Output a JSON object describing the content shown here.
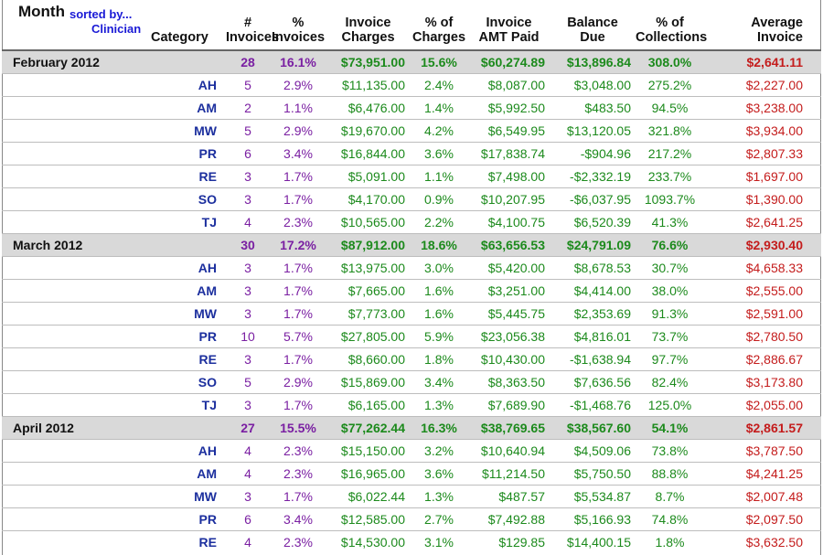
{
  "header": {
    "month": "Month",
    "sorted_by": "sorted by...",
    "clinician": "Clinician",
    "category": "Category",
    "invoices_count": [
      "#",
      "Invoices"
    ],
    "pct_invoices": [
      "%",
      "Invoices"
    ],
    "invoice_charges": [
      "Invoice",
      "Charges"
    ],
    "pct_charges": [
      "% of",
      "Charges"
    ],
    "invoice_amt_paid": [
      "Invoice",
      "AMT Paid"
    ],
    "balance_due": [
      "Balance",
      "Due"
    ],
    "pct_collections": [
      "% of",
      "Collections"
    ],
    "average_invoice": [
      "Average",
      "Invoice"
    ]
  },
  "months": [
    {
      "label": "February 2012",
      "summary": {
        "invoices": "28",
        "pct_invoices": "16.1%",
        "charges": "$73,951.00",
        "pct_charges": "15.6%",
        "paid": "$60,274.89",
        "balance": "$13,896.84",
        "collections": "308.0%",
        "average": "$2,641.11"
      },
      "rows": [
        {
          "code": "AH",
          "invoices": "5",
          "pct_invoices": "2.9%",
          "charges": "$11,135.00",
          "pct_charges": "2.4%",
          "paid": "$8,087.00",
          "balance": "$3,048.00",
          "collections": "275.2%",
          "average": "$2,227.00"
        },
        {
          "code": "AM",
          "invoices": "2",
          "pct_invoices": "1.1%",
          "charges": "$6,476.00",
          "pct_charges": "1.4%",
          "paid": "$5,992.50",
          "balance": "$483.50",
          "collections": "94.5%",
          "average": "$3,238.00"
        },
        {
          "code": "MW",
          "invoices": "5",
          "pct_invoices": "2.9%",
          "charges": "$19,670.00",
          "pct_charges": "4.2%",
          "paid": "$6,549.95",
          "balance": "$13,120.05",
          "collections": "321.8%",
          "average": "$3,934.00"
        },
        {
          "code": "PR",
          "invoices": "6",
          "pct_invoices": "3.4%",
          "charges": "$16,844.00",
          "pct_charges": "3.6%",
          "paid": "$17,838.74",
          "balance": "-$904.96",
          "collections": "217.2%",
          "average": "$2,807.33"
        },
        {
          "code": "RE",
          "invoices": "3",
          "pct_invoices": "1.7%",
          "charges": "$5,091.00",
          "pct_charges": "1.1%",
          "paid": "$7,498.00",
          "balance": "-$2,332.19",
          "collections": "233.7%",
          "average": "$1,697.00"
        },
        {
          "code": "SO",
          "invoices": "3",
          "pct_invoices": "1.7%",
          "charges": "$4,170.00",
          "pct_charges": "0.9%",
          "paid": "$10,207.95",
          "balance": "-$6,037.95",
          "collections": "1093.7%",
          "average": "$1,390.00"
        },
        {
          "code": "TJ",
          "invoices": "4",
          "pct_invoices": "2.3%",
          "charges": "$10,565.00",
          "pct_charges": "2.2%",
          "paid": "$4,100.75",
          "balance": "$6,520.39",
          "collections": "41.3%",
          "average": "$2,641.25"
        }
      ]
    },
    {
      "label": "March 2012",
      "summary": {
        "invoices": "30",
        "pct_invoices": "17.2%",
        "charges": "$87,912.00",
        "pct_charges": "18.6%",
        "paid": "$63,656.53",
        "balance": "$24,791.09",
        "collections": "76.6%",
        "average": "$2,930.40"
      },
      "rows": [
        {
          "code": "AH",
          "invoices": "3",
          "pct_invoices": "1.7%",
          "charges": "$13,975.00",
          "pct_charges": "3.0%",
          "paid": "$5,420.00",
          "balance": "$8,678.53",
          "collections": "30.7%",
          "average": "$4,658.33"
        },
        {
          "code": "AM",
          "invoices": "3",
          "pct_invoices": "1.7%",
          "charges": "$7,665.00",
          "pct_charges": "1.6%",
          "paid": "$3,251.00",
          "balance": "$4,414.00",
          "collections": "38.0%",
          "average": "$2,555.00"
        },
        {
          "code": "MW",
          "invoices": "3",
          "pct_invoices": "1.7%",
          "charges": "$7,773.00",
          "pct_charges": "1.6%",
          "paid": "$5,445.75",
          "balance": "$2,353.69",
          "collections": "91.3%",
          "average": "$2,591.00"
        },
        {
          "code": "PR",
          "invoices": "10",
          "pct_invoices": "5.7%",
          "charges": "$27,805.00",
          "pct_charges": "5.9%",
          "paid": "$23,056.38",
          "balance": "$4,816.01",
          "collections": "73.7%",
          "average": "$2,780.50"
        },
        {
          "code": "RE",
          "invoices": "3",
          "pct_invoices": "1.7%",
          "charges": "$8,660.00",
          "pct_charges": "1.8%",
          "paid": "$10,430.00",
          "balance": "-$1,638.94",
          "collections": "97.7%",
          "average": "$2,886.67"
        },
        {
          "code": "SO",
          "invoices": "5",
          "pct_invoices": "2.9%",
          "charges": "$15,869.00",
          "pct_charges": "3.4%",
          "paid": "$8,363.50",
          "balance": "$7,636.56",
          "collections": "82.4%",
          "average": "$3,173.80"
        },
        {
          "code": "TJ",
          "invoices": "3",
          "pct_invoices": "1.7%",
          "charges": "$6,165.00",
          "pct_charges": "1.3%",
          "paid": "$7,689.90",
          "balance": "-$1,468.76",
          "collections": "125.0%",
          "average": "$2,055.00"
        }
      ]
    },
    {
      "label": "April 2012",
      "summary": {
        "invoices": "27",
        "pct_invoices": "15.5%",
        "charges": "$77,262.44",
        "pct_charges": "16.3%",
        "paid": "$38,769.65",
        "balance": "$38,567.60",
        "collections": "54.1%",
        "average": "$2,861.57"
      },
      "rows": [
        {
          "code": "AH",
          "invoices": "4",
          "pct_invoices": "2.3%",
          "charges": "$15,150.00",
          "pct_charges": "3.2%",
          "paid": "$10,640.94",
          "balance": "$4,509.06",
          "collections": "73.8%",
          "average": "$3,787.50"
        },
        {
          "code": "AM",
          "invoices": "4",
          "pct_invoices": "2.3%",
          "charges": "$16,965.00",
          "pct_charges": "3.6%",
          "paid": "$11,214.50",
          "balance": "$5,750.50",
          "collections": "88.8%",
          "average": "$4,241.25"
        },
        {
          "code": "MW",
          "invoices": "3",
          "pct_invoices": "1.7%",
          "charges": "$6,022.44",
          "pct_charges": "1.3%",
          "paid": "$487.57",
          "balance": "$5,534.87",
          "collections": "8.7%",
          "average": "$2,007.48"
        },
        {
          "code": "PR",
          "invoices": "6",
          "pct_invoices": "3.4%",
          "charges": "$12,585.00",
          "pct_charges": "2.7%",
          "paid": "$7,492.88",
          "balance": "$5,166.93",
          "collections": "74.8%",
          "average": "$2,097.50"
        },
        {
          "code": "RE",
          "invoices": "4",
          "pct_invoices": "2.3%",
          "charges": "$14,530.00",
          "pct_charges": "3.1%",
          "paid": "$129.85",
          "balance": "$14,400.15",
          "collections": "1.8%",
          "average": "$3,632.50"
        }
      ]
    }
  ]
}
